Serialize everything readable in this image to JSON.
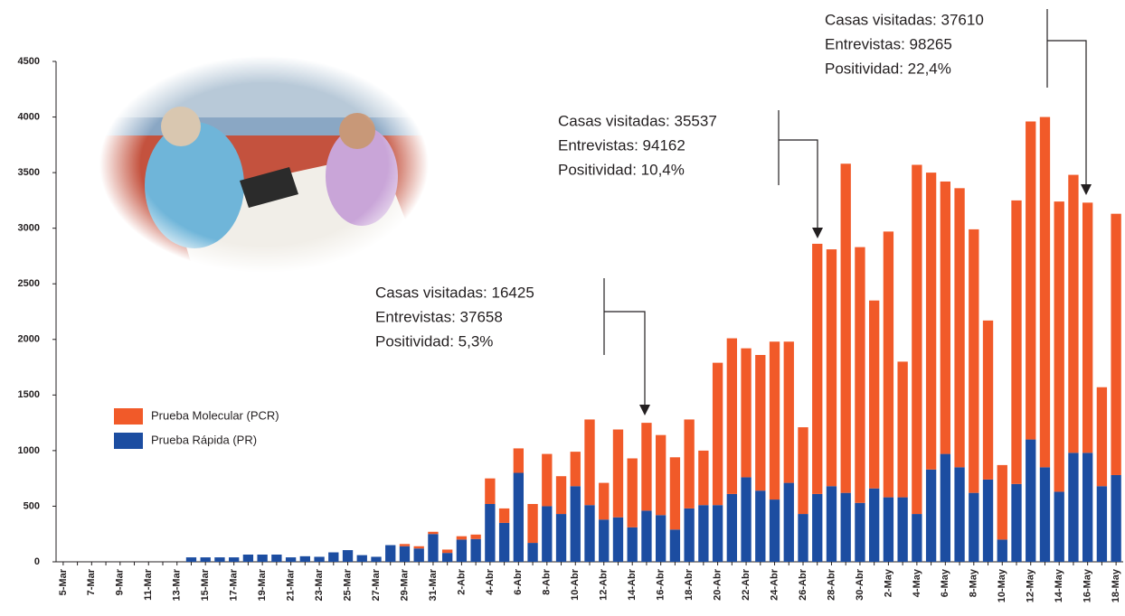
{
  "chart_data": {
    "type": "stacked-bar",
    "categories": [
      "5-Mar",
      null,
      "7-Mar",
      null,
      "9-Mar",
      null,
      "11-Mar",
      null,
      "13-Mar",
      null,
      "15-Mar",
      null,
      "17-Mar",
      null,
      "19-Mar",
      null,
      "21-Mar",
      null,
      "23-Mar",
      null,
      "25-Mar",
      null,
      "27-Mar",
      null,
      "29-Mar",
      null,
      "31-Mar",
      null,
      "2-Abr",
      null,
      "4-Abr",
      null,
      "6-Abr",
      null,
      "8-Abr",
      null,
      "10-Abr",
      null,
      "12-Abr",
      null,
      "14-Abr",
      null,
      "16-Abr",
      null,
      "18-Abr",
      null,
      "20-Abr",
      null,
      "22-Abr",
      null,
      "24-Abr",
      null,
      "26-Abr",
      null,
      "28-Abr",
      null,
      "30-Abr",
      null,
      "2-May",
      null,
      "4-May",
      null,
      "6-May",
      null,
      "8-May",
      null,
      "10-May",
      null,
      "12-May",
      null,
      "14-May",
      null,
      "16-May",
      null,
      "18-May"
    ],
    "series": [
      {
        "name": "Prueba Molecular (PCR)",
        "color": "#f15a29",
        "values": [
          0,
          0,
          0,
          0,
          0,
          0,
          0,
          0,
          0,
          0,
          0,
          0,
          0,
          0,
          0,
          0,
          0,
          0,
          0,
          0,
          0,
          0,
          0,
          0,
          20,
          20,
          20,
          30,
          30,
          40,
          230,
          130,
          220,
          350,
          470,
          340,
          310,
          770,
          330,
          790,
          620,
          790,
          720,
          650,
          800,
          490,
          1280,
          1400,
          1160,
          1220,
          1420,
          1270,
          780,
          2250,
          2130,
          2960,
          2300,
          1690,
          2390,
          1220,
          3140,
          2670,
          2450,
          2510,
          2370,
          1430,
          670,
          2550,
          2860,
          3150,
          2610,
          2500,
          2250,
          890,
          2350
        ]
      },
      {
        "name": "Prueba Rápida (PR)",
        "color": "#1c4da1",
        "values": [
          0,
          0,
          0,
          0,
          0,
          0,
          0,
          0,
          0,
          40,
          40,
          40,
          40,
          65,
          65,
          65,
          40,
          50,
          45,
          85,
          105,
          60,
          45,
          150,
          140,
          120,
          250,
          80,
          200,
          205,
          520,
          350,
          800,
          170,
          500,
          430,
          680,
          510,
          380,
          400,
          310,
          460,
          420,
          290,
          480,
          510,
          510,
          610,
          760,
          640,
          560,
          710,
          430,
          610,
          680,
          620,
          530,
          660,
          580,
          580,
          430,
          830,
          970,
          850,
          620,
          740,
          200,
          700,
          1100,
          850,
          630,
          980,
          980,
          680,
          780
        ]
      }
    ],
    "ylim": [
      0,
      4500
    ],
    "yticks": [
      0,
      500,
      1000,
      1500,
      2000,
      2500,
      3000,
      3500,
      4000,
      4500
    ],
    "annotations": [
      [
        "Casas visitadas: 16425",
        "Entrevistas: 37658",
        "Positividad: 5,3%"
      ],
      [
        "Casas visitadas: 35537",
        "Entrevistas: 94162",
        "Positividad: 10,4%"
      ],
      [
        "Casas visitadas: 37610",
        "Entrevistas: 98265",
        "Positividad: 22,4%"
      ]
    ]
  }
}
